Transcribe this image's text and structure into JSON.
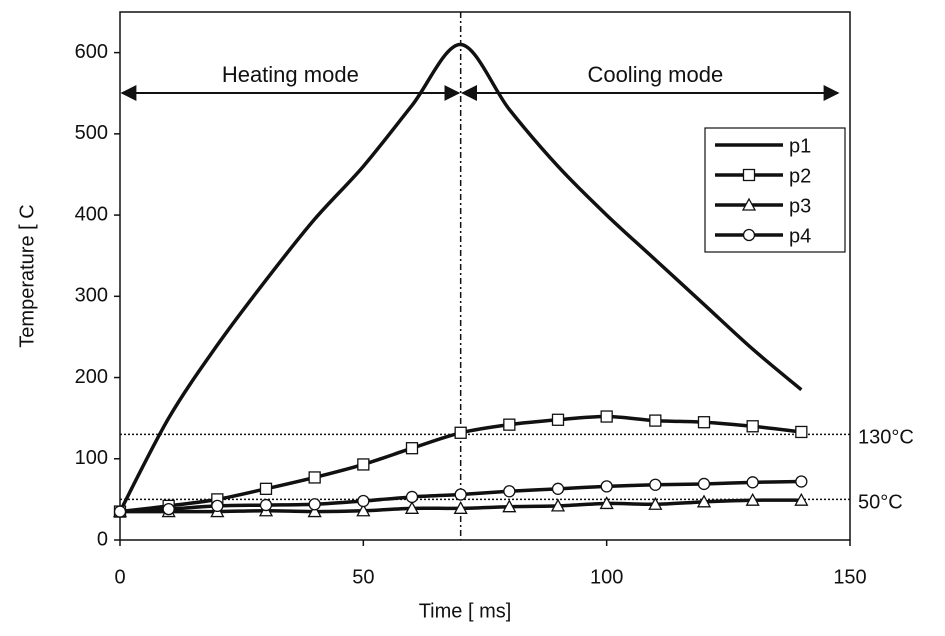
{
  "chart_data": {
    "type": "line",
    "xlabel": "Time [ ms]",
    "ylabel": "Temperature [ C",
    "x": [
      0,
      10,
      20,
      30,
      40,
      50,
      60,
      70,
      80,
      90,
      100,
      110,
      120,
      130,
      140
    ],
    "series": [
      {
        "name": "p1",
        "color": "#111111",
        "marker": "none",
        "values": [
          35,
          150,
          240,
          320,
          395,
          460,
          535,
          610,
          530,
          460,
          400,
          345,
          290,
          235,
          185
        ]
      },
      {
        "name": "p2",
        "color": "#111111",
        "marker": "square",
        "values": [
          35,
          42,
          50,
          63,
          77,
          93,
          113,
          132,
          142,
          148,
          152,
          147,
          145,
          140,
          133
        ]
      },
      {
        "name": "p3",
        "color": "#111111",
        "marker": "triangle",
        "values": [
          35,
          35,
          35,
          36,
          35,
          36,
          39,
          39,
          41,
          42,
          45,
          44,
          47,
          49,
          49
        ]
      },
      {
        "name": "p4",
        "color": "#111111",
        "marker": "circle",
        "values": [
          35,
          38,
          42,
          43,
          44,
          48,
          53,
          56,
          60,
          63,
          66,
          68,
          69,
          71,
          72
        ]
      }
    ],
    "xlim": [
      0,
      150
    ],
    "xticks": [
      0,
      50,
      100,
      150
    ],
    "ylim": [
      0,
      650
    ],
    "yticks": [
      0,
      100,
      200,
      300,
      400,
      500,
      600
    ],
    "vline": 70,
    "hlines": [
      {
        "y": 130,
        "label": "130°C"
      },
      {
        "y": 50,
        "label": "50°C"
      }
    ],
    "annotations": [
      "Heating mode",
      "Cooling mode"
    ],
    "legend": "upper right"
  }
}
